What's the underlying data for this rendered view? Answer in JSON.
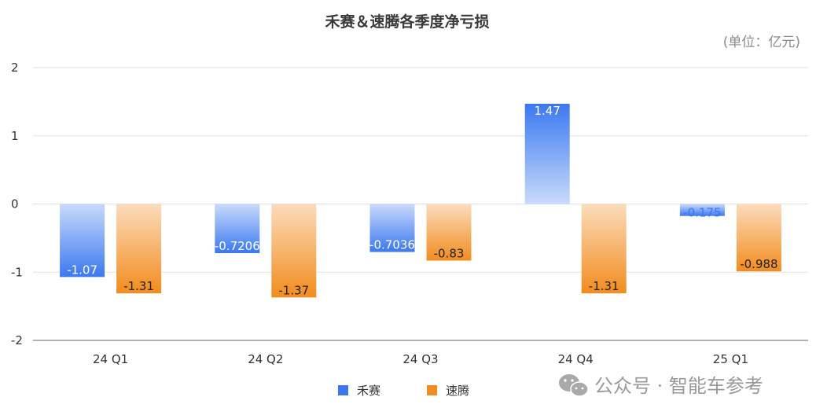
{
  "chart_data": {
    "type": "bar",
    "title": "禾赛＆速腾各季度净亏损",
    "unit_note": "(单位：亿元)",
    "categories": [
      "24 Q1",
      "24 Q2",
      "24 Q3",
      "24 Q4",
      "25 Q1"
    ],
    "ylim": [
      -2,
      2
    ],
    "yticks": [
      2,
      1,
      0,
      -1,
      -2
    ],
    "grid": true,
    "legend_position": "bottom",
    "series": [
      {
        "name": "禾赛",
        "color": "#3b78f0",
        "values": [
          -1.07,
          -0.7206,
          -0.7036,
          1.47,
          -0.175
        ],
        "labels": [
          "-1.07",
          "-0.7206",
          "-0.7036",
          "1.47",
          "-0.175"
        ]
      },
      {
        "name": "速腾",
        "color": "#f28c1e",
        "values": [
          -1.31,
          -1.37,
          -0.83,
          -1.31,
          -0.988
        ],
        "labels": [
          "-1.31",
          "-1.37",
          "-0.83",
          "-1.31",
          "-0.988"
        ]
      }
    ]
  },
  "watermark": "公众号 · 智能车参考"
}
